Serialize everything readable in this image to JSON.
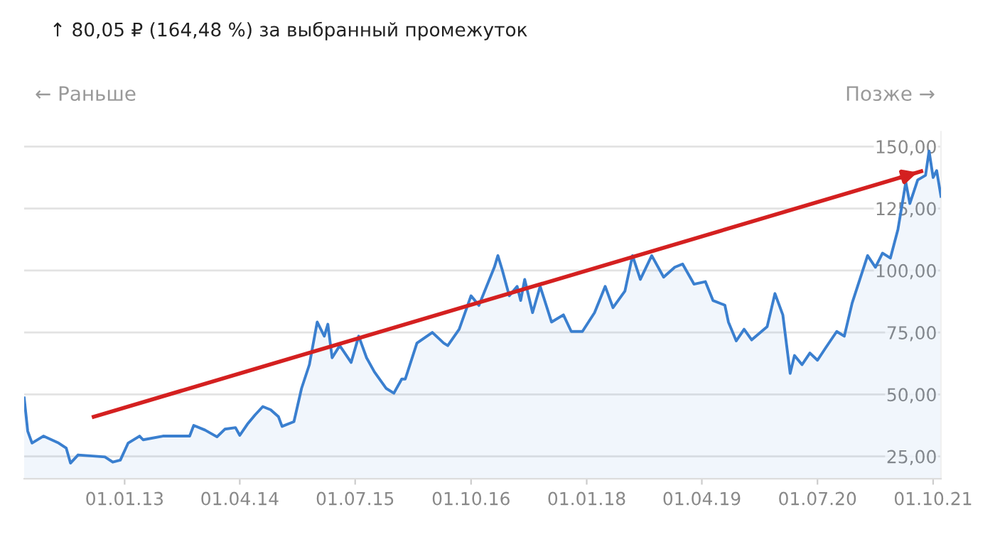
{
  "chart_data": {
    "type": "area",
    "title": "↑ 80,05 ₽ (164,48 %) за выбранный промежуток",
    "annotations": [
      "← Раньше",
      "Позже →"
    ],
    "series": [
      {
        "color": "#3a7fcf",
        "x": [
          "2011-12-01",
          "2011-12-15",
          "2012-01-01",
          "2012-02-15",
          "2012-04-15",
          "2012-05-15",
          "2012-06-01",
          "2012-07-01",
          "2012-10-15",
          "2012-11-15",
          "2012-12-15",
          "2013-01-15",
          "2013-03-01",
          "2013-03-15",
          "2013-06-01",
          "2013-09-15",
          "2013-10-01",
          "2013-11-15",
          "2014-01-01",
          "2014-02-01",
          "2014-03-15",
          "2014-04-01",
          "2014-05-01",
          "2014-06-01",
          "2014-07-01",
          "2014-08-01",
          "2014-09-01",
          "2014-09-15",
          "2014-11-01",
          "2014-12-01",
          "2015-01-01",
          "2015-02-01",
          "2015-03-01",
          "2015-03-15",
          "2015-04-01",
          "2015-05-01",
          "2015-06-15",
          "2015-07-15",
          "2015-08-15",
          "2015-09-15",
          "2015-11-01",
          "2015-12-01",
          "2016-01-01",
          "2016-01-15",
          "2016-03-01",
          "2016-05-01",
          "2016-06-15",
          "2016-07-01",
          "2016-08-15",
          "2016-10-01",
          "2016-11-01",
          "2017-01-01",
          "2017-01-15",
          "2017-02-01",
          "2017-03-01",
          "2017-04-01",
          "2017-04-15",
          "2017-05-01",
          "2017-06-01",
          "2017-07-01",
          "2017-08-15",
          "2017-10-01",
          "2017-11-01",
          "2017-12-15",
          "2018-02-01",
          "2018-03-15",
          "2018-04-15",
          "2018-06-01",
          "2018-07-01",
          "2018-08-01",
          "2018-09-15",
          "2018-11-01",
          "2018-12-15",
          "2019-01-15",
          "2019-03-01",
          "2019-04-15",
          "2019-05-15",
          "2019-07-01",
          "2019-07-15",
          "2019-08-15",
          "2019-09-15",
          "2019-10-15",
          "2019-12-15",
          "2020-01-15",
          "2020-02-15",
          "2020-03-15",
          "2020-04-01",
          "2020-05-01",
          "2020-06-01",
          "2020-07-01",
          "2020-08-01",
          "2020-09-15",
          "2020-10-15",
          "2020-11-15",
          "2021-01-15",
          "2021-02-15",
          "2021-03-15",
          "2021-04-15",
          "2021-05-15",
          "2021-06-15",
          "2021-07-01",
          "2021-08-01",
          "2021-09-01",
          "2021-09-15",
          "2021-10-01",
          "2021-10-15",
          "2021-11-01"
        ],
        "values": [
          48.6,
          35.2,
          30.4,
          33.2,
          30.4,
          28.4,
          22.3,
          25.6,
          24.8,
          22.7,
          23.5,
          30.4,
          33.2,
          31.7,
          33.2,
          33.2,
          37.5,
          35.6,
          32.9,
          36,
          36.6,
          33.5,
          38,
          41.8,
          45.1,
          43.8,
          41,
          37.1,
          39,
          52.4,
          62,
          79.2,
          73.5,
          78.3,
          64.8,
          69.7,
          62.9,
          73.5,
          64.8,
          59.1,
          52.4,
          50.5,
          56.2,
          56.2,
          70.7,
          75,
          70.7,
          69.7,
          76.3,
          89.8,
          85.9,
          101.3,
          106,
          100.3,
          89.8,
          93.6,
          87.9,
          96.4,
          83,
          93.6,
          79.2,
          82.1,
          75.4,
          75.4,
          83,
          93.6,
          85,
          91.7,
          106,
          96.4,
          106,
          97.3,
          101.3,
          102.6,
          94.5,
          95.5,
          87.9,
          86,
          79.2,
          71.6,
          76.3,
          72,
          77.3,
          90.7,
          82.1,
          58.5,
          65.7,
          62,
          66.7,
          63.8,
          68.6,
          75.4,
          73.5,
          86.9,
          106,
          101.3,
          107,
          105,
          116.6,
          135.6,
          127,
          136.5,
          138.4,
          148.2,
          137.5,
          140.3,
          129.9
        ]
      },
      {
        "type": "line",
        "color": "#d42020",
        "x": [
          "2012-09-01",
          "2021-08-15"
        ],
        "values": [
          41,
          140
        ]
      }
    ],
    "xlim": [
      "2011-12-01",
      "2021-11-01"
    ],
    "xticks": [
      {
        "value": "2013-01-01",
        "label": "01.01.13"
      },
      {
        "value": "2014-04-01",
        "label": "01.04.14"
      },
      {
        "value": "2015-07-01",
        "label": "01.07.15"
      },
      {
        "value": "2016-10-01",
        "label": "01.10.16"
      },
      {
        "value": "2018-01-01",
        "label": "01.01.18"
      },
      {
        "value": "2019-04-01",
        "label": "01.04.19"
      },
      {
        "value": "2020-07-01",
        "label": "01.07.20"
      },
      {
        "value": "2021-10-01",
        "label": "01.10.21"
      }
    ],
    "ylim": [
      16,
      156
    ],
    "yticks": [
      {
        "value": 25,
        "label": "25,00"
      },
      {
        "value": 50,
        "label": "50,00"
      },
      {
        "value": 75,
        "label": "75,00"
      },
      {
        "value": 100,
        "label": "100,00"
      },
      {
        "value": 125,
        "label": "125,00"
      },
      {
        "value": 150,
        "label": "150,00"
      }
    ],
    "grid": "y",
    "legend": false
  }
}
